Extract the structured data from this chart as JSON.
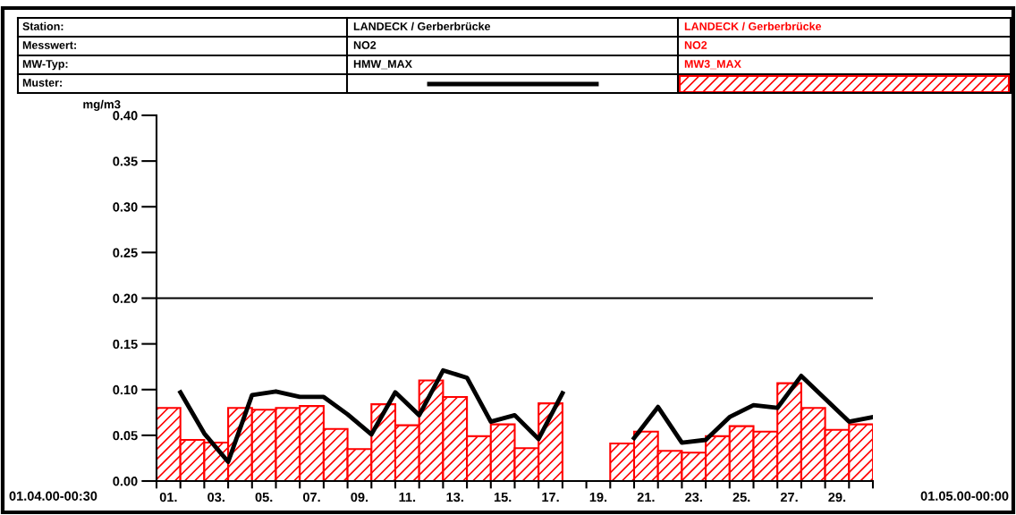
{
  "chart_data": {
    "type": "bar",
    "ylabel": "mg/m3",
    "x": [
      0.5,
      1.5,
      2.5,
      3.5,
      4.5,
      5.5,
      6.5,
      7.5,
      8.5,
      9.5,
      10.5,
      11.5,
      12.5,
      13.5,
      14.5,
      15.5,
      16.5,
      17.5,
      18.5,
      19.5,
      20.5,
      21.5,
      22.5,
      23.5,
      24.5,
      25.5,
      26.5,
      27.5,
      28.5,
      29.5
    ],
    "series": [
      {
        "name": "HMW_MAX",
        "type": "line",
        "color": "#000000",
        "x": [
          1,
          2,
          3,
          4,
          5,
          6,
          7,
          8,
          9,
          10,
          11,
          12,
          13,
          14,
          15,
          16,
          17,
          18,
          19,
          20,
          21,
          22,
          23,
          24,
          25,
          26,
          27,
          28,
          29,
          30
        ],
        "values": [
          0.097,
          0.052,
          0.021,
          0.094,
          0.098,
          0.092,
          0.092,
          0.073,
          0.051,
          0.097,
          0.072,
          0.121,
          0.113,
          0.065,
          0.072,
          0.046,
          0.096,
          null,
          null,
          0.047,
          0.081,
          0.042,
          0.045,
          0.07,
          0.083,
          0.08,
          0.115,
          0.09,
          0.065,
          0.07
        ]
      },
      {
        "name": "MW3_MAX",
        "color": "#ff0000",
        "values": [
          0.08,
          0.045,
          0.042,
          0.08,
          0.078,
          0.08,
          0.082,
          0.057,
          0.035,
          0.084,
          0.061,
          0.11,
          0.092,
          0.049,
          0.062,
          0.036,
          0.085,
          null,
          null,
          0.041,
          0.054,
          0.033,
          0.031,
          0.049,
          0.06,
          0.054,
          0.107,
          0.08,
          0.056,
          0.062
        ]
      }
    ],
    "xlim": [
      0,
      30
    ],
    "xticks": [
      {
        "value": 0,
        "label": null
      },
      {
        "value": 1,
        "label": null
      },
      {
        "value": 2,
        "label": null
      },
      {
        "value": 3,
        "label": null
      },
      {
        "value": 4,
        "label": null
      },
      {
        "value": 5,
        "label": null
      },
      {
        "value": 6,
        "label": null
      },
      {
        "value": 7,
        "label": null
      },
      {
        "value": 8,
        "label": null
      },
      {
        "value": 9,
        "label": null
      },
      {
        "value": 10,
        "label": null
      },
      {
        "value": 11,
        "label": null
      },
      {
        "value": 12,
        "label": null
      },
      {
        "value": 13,
        "label": null
      },
      {
        "value": 14,
        "label": null
      },
      {
        "value": 15,
        "label": null
      },
      {
        "value": 16,
        "label": null
      },
      {
        "value": 17,
        "label": null
      },
      {
        "value": 18,
        "label": null
      },
      {
        "value": 19,
        "label": null
      },
      {
        "value": 20,
        "label": null
      },
      {
        "value": 21,
        "label": null
      },
      {
        "value": 22,
        "label": null
      },
      {
        "value": 23,
        "label": null
      },
      {
        "value": 24,
        "label": null
      },
      {
        "value": 25,
        "label": null
      },
      {
        "value": 26,
        "label": null
      },
      {
        "value": 27,
        "label": null
      },
      {
        "value": 28,
        "label": null
      },
      {
        "value": 29,
        "label": null
      },
      {
        "value": 30,
        "label": null
      },
      {
        "value": 0.5,
        "label": "01."
      },
      {
        "value": 2.5,
        "label": "03."
      },
      {
        "value": 4.5,
        "label": "05."
      },
      {
        "value": 6.5,
        "label": "07."
      },
      {
        "value": 8.5,
        "label": "09."
      },
      {
        "value": 10.5,
        "label": "11."
      },
      {
        "value": 12.5,
        "label": "13."
      },
      {
        "value": 14.5,
        "label": "15."
      },
      {
        "value": 16.5,
        "label": "17."
      },
      {
        "value": 18.5,
        "label": "19."
      },
      {
        "value": 20.5,
        "label": "21."
      },
      {
        "value": 22.5,
        "label": "23."
      },
      {
        "value": 24.5,
        "label": "25."
      },
      {
        "value": 26.5,
        "label": "27."
      },
      {
        "value": 28.5,
        "label": "29."
      }
    ],
    "ylim": [
      0,
      0.4
    ],
    "yticks": [
      {
        "value": 0,
        "label": "0.00"
      },
      {
        "value": 0.05,
        "label": "0.05"
      },
      {
        "value": 0.1,
        "label": "0.10"
      },
      {
        "value": 0.15,
        "label": "0.15"
      },
      {
        "value": 0.2,
        "label": "0.20"
      },
      {
        "value": 0.25,
        "label": "0.25"
      },
      {
        "value": 0.3,
        "label": "0.30"
      },
      {
        "value": 0.35,
        "label": "0.35"
      },
      {
        "value": 0.4,
        "label": "0.40"
      }
    ],
    "ref_lines": [
      {
        "axis": "y",
        "value": 0.2,
        "color": "#000000"
      }
    ],
    "legend": "top",
    "grid": false,
    "annotations": [
      "Station:",
      "Messwert:",
      "MW-Typ:",
      "Muster:",
      "LANDECK / Gerberbrücke",
      "NO2",
      "LANDECK / Gerberbrücke",
      "NO2",
      "01.04.00-00:30",
      "01.05.00-00:00"
    ]
  }
}
